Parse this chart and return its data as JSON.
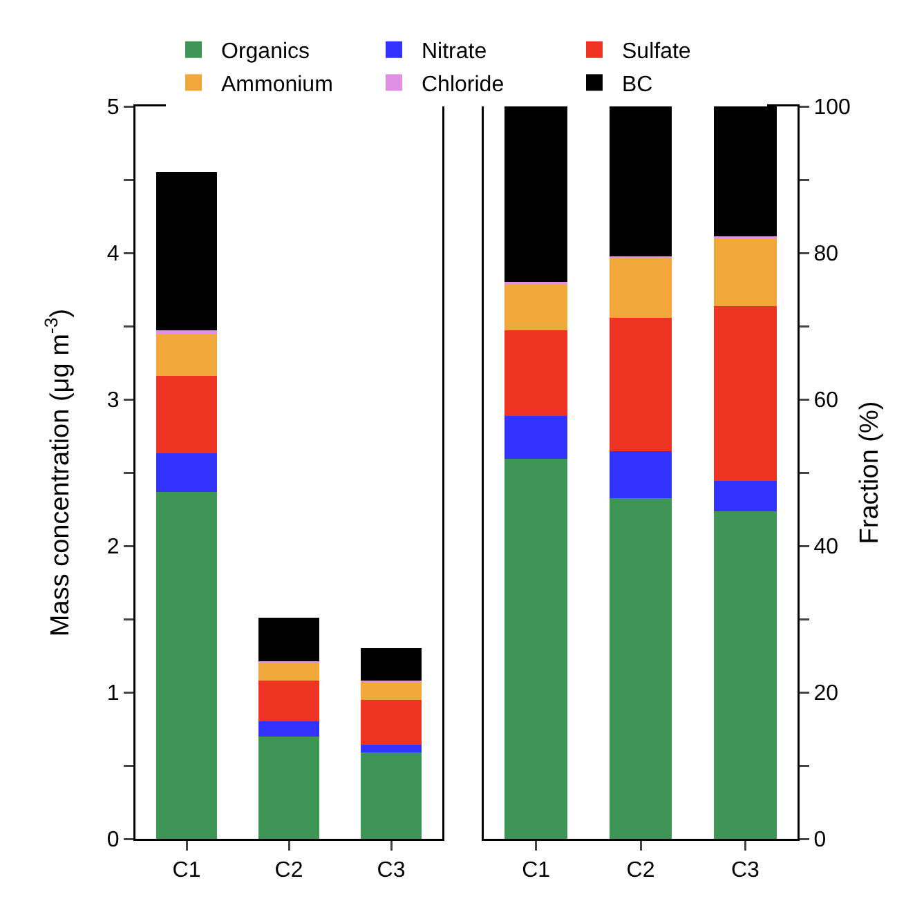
{
  "chart_data": [
    {
      "type": "bar",
      "stacked": true,
      "categories": [
        "C1",
        "C2",
        "C3"
      ],
      "ylabel": "Mass concentration (μg m$^{-3}$)",
      "ylim": [
        0,
        5
      ],
      "yticks": [
        0,
        {
          "value": 0.5,
          "label": null
        },
        1,
        {
          "value": 1.5,
          "label": null
        },
        2,
        {
          "value": 2.5,
          "label": null
        },
        3,
        {
          "value": 3.5,
          "label": null
        },
        4,
        {
          "value": 4.5,
          "label": null
        },
        5
      ],
      "legend": "top",
      "grid": false,
      "series": [
        {
          "name": "Organics",
          "color": "#3d9655",
          "values": [
            2.37,
            0.7,
            0.59
          ]
        },
        {
          "name": "Nitrate",
          "color": "#3333ff",
          "values": [
            0.26,
            0.1,
            0.05
          ]
        },
        {
          "name": "Sulfate",
          "color": "#ee3322",
          "values": [
            0.53,
            0.28,
            0.31
          ]
        },
        {
          "name": "Ammonium",
          "color": "#f0a83a",
          "values": [
            0.29,
            0.12,
            0.12
          ]
        },
        {
          "name": "Chloride",
          "color": "#e090e0",
          "values": [
            0.02,
            0.01,
            0.01
          ]
        },
        {
          "name": "BC",
          "color": "#000000",
          "values": [
            1.08,
            0.3,
            0.22
          ]
        }
      ]
    },
    {
      "type": "bar",
      "stacked": true,
      "categories": [
        "C1",
        "C2",
        "C3"
      ],
      "y2label": "Fraction (%)",
      "y2lim": [
        0,
        100
      ],
      "y2ticks": [
        0,
        {
          "value": 10,
          "label": null
        },
        20,
        {
          "value": 30,
          "label": null
        },
        40,
        {
          "value": 50,
          "label": null
        },
        60,
        {
          "value": 70,
          "label": null
        },
        80,
        {
          "value": 90,
          "label": null
        },
        100
      ],
      "legend": "top",
      "grid": false,
      "series": [
        {
          "name": "Organics",
          "color": "#3d9655",
          "axis": "y2",
          "values": [
            51.9,
            46.5,
            44.7
          ]
        },
        {
          "name": "Nitrate",
          "color": "#3333ff",
          "axis": "y2",
          "values": [
            5.8,
            6.4,
            4.2
          ]
        },
        {
          "name": "Sulfate",
          "color": "#ee3322",
          "axis": "y2",
          "values": [
            11.7,
            18.2,
            23.8
          ]
        },
        {
          "name": "Ammonium",
          "color": "#f0a83a",
          "axis": "y2",
          "values": [
            6.3,
            8.1,
            9.3
          ]
        },
        {
          "name": "Chloride",
          "color": "#e090e0",
          "axis": "y2",
          "values": [
            0.3,
            0.3,
            0.3
          ]
        },
        {
          "name": "BC",
          "color": "#000000",
          "axis": "y2",
          "values": [
            24.0,
            20.5,
            17.7
          ]
        }
      ]
    }
  ]
}
